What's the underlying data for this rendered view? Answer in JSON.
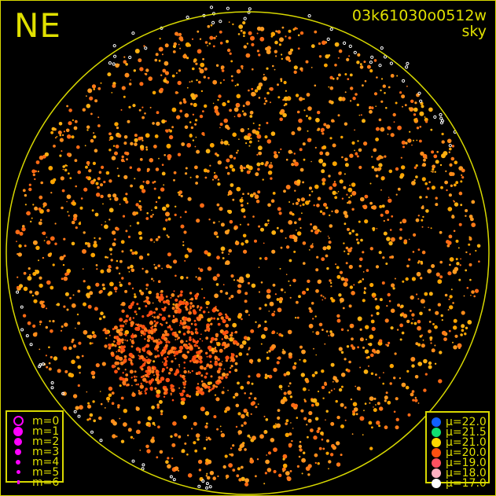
{
  "direction_label": "NE",
  "frame_id": "03k61030o0512w",
  "frame_type": "sky",
  "colors": {
    "frame": "#d8d800",
    "text": "#e0e000",
    "marker": "#ff00ff"
  },
  "magnitude_legend": [
    {
      "label": "m=0",
      "style": "ring"
    },
    {
      "label": "m=1"
    },
    {
      "label": "m=2"
    },
    {
      "label": "m=3"
    },
    {
      "label": "m=4"
    },
    {
      "label": "m=5"
    },
    {
      "label": "m=6"
    }
  ],
  "brightness_legend": [
    {
      "label": "μ=22.0",
      "color": "#1060ff"
    },
    {
      "label": "μ=21.5",
      "color": "#10e070"
    },
    {
      "label": "μ=21.0",
      "color": "#ffd800"
    },
    {
      "label": "μ=20.0",
      "color": "#ff5010"
    },
    {
      "label": "μ=19.0",
      "color": "#ff5060"
    },
    {
      "label": "μ=18.0",
      "color": "#ffb0c0"
    },
    {
      "label": "μ=17.0",
      "color": "#ffffff"
    }
  ]
}
